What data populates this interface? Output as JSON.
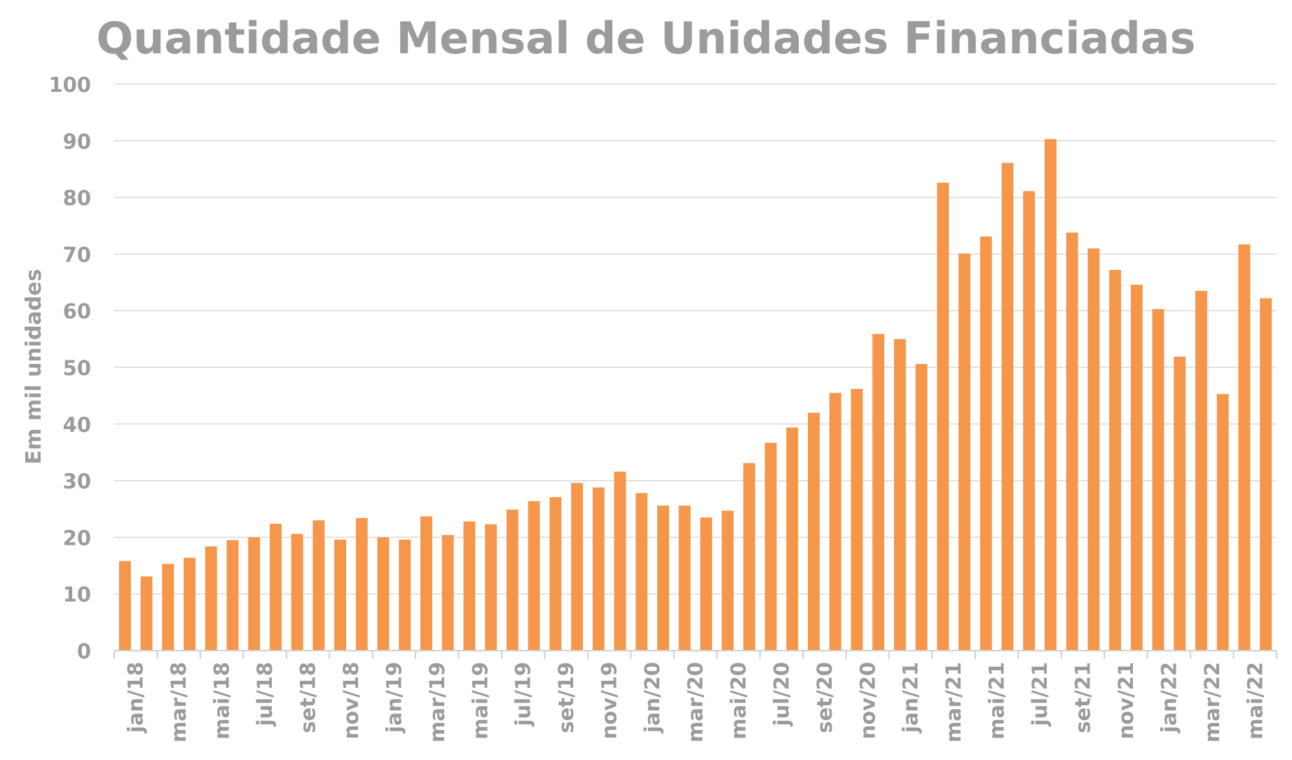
{
  "chart_data": {
    "type": "bar",
    "title": "Quantidade Mensal de Unidades Financiadas",
    "xlabel": "",
    "ylabel": "Em mil unidades",
    "ylim": [
      0,
      100
    ],
    "yticks": [
      0,
      10,
      20,
      30,
      40,
      50,
      60,
      70,
      80,
      90,
      100
    ],
    "grid": true,
    "bar_color": "#f5964a",
    "categories": [
      "jan/18",
      "fev/18",
      "mar/18",
      "abr/18",
      "mai/18",
      "jun/18",
      "jul/18",
      "ago/18",
      "set/18",
      "out/18",
      "nov/18",
      "dez/18",
      "jan/19",
      "fev/19",
      "mar/19",
      "abr/19",
      "mai/19",
      "jun/19",
      "jul/19",
      "ago/19",
      "set/19",
      "out/19",
      "nov/19",
      "dez/19",
      "jan/20",
      "fev/20",
      "mar/20",
      "abr/20",
      "mai/20",
      "jun/20",
      "jul/20",
      "ago/20",
      "set/20",
      "out/20",
      "nov/20",
      "dez/20",
      "jan/21",
      "fev/21",
      "mar/21",
      "abr/21",
      "mai/21",
      "jun/21",
      "jul/21",
      "ago/21",
      "set/21",
      "out/21",
      "nov/21",
      "dez/21",
      "jan/22",
      "fev/22",
      "mar/22",
      "abr/22",
      "mai/22",
      "jun/22"
    ],
    "tick_labels": [
      "jan/18",
      "mar/18",
      "mai/18",
      "jul/18",
      "set/18",
      "nov/18",
      "jan/19",
      "mar/19",
      "mai/19",
      "jul/19",
      "set/19",
      "nov/19",
      "jan/20",
      "mar/20",
      "mai/20",
      "jul/20",
      "set/20",
      "nov/20",
      "jan/21",
      "mar/21",
      "mai/21",
      "jul/21",
      "set/21",
      "nov/21",
      "jan/22",
      "mar/22",
      "mai/22"
    ],
    "values": [
      15.8,
      13.1,
      15.3,
      16.4,
      18.4,
      19.5,
      20.0,
      22.4,
      20.6,
      23.0,
      19.6,
      23.4,
      20.0,
      19.6,
      23.7,
      20.4,
      22.8,
      22.3,
      24.9,
      26.4,
      27.1,
      29.6,
      28.8,
      31.6,
      27.8,
      25.6,
      25.6,
      23.5,
      24.7,
      33.1,
      36.7,
      39.4,
      42.0,
      45.5,
      46.2,
      55.9,
      55.0,
      50.6,
      82.6,
      70.1,
      73.1,
      86.1,
      81.1,
      90.3,
      73.8,
      71.0,
      67.2,
      64.6,
      60.3,
      51.9,
      63.5,
      45.3,
      71.7,
      62.2
    ]
  }
}
